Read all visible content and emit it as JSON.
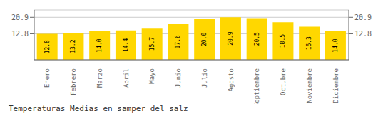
{
  "chart_data": {
    "type": "bar",
    "title": "Temperaturas Medias en samper del salz",
    "categories": [
      "Enero",
      "Febrero",
      "Marzo",
      "Abril",
      "Mayo",
      "Junio",
      "Julio",
      "Agosto",
      "Septiembre",
      "Octubre",
      "Noviembre",
      "Diciembre"
    ],
    "values": [
      12.8,
      13.2,
      14.0,
      14.4,
      15.7,
      17.6,
      20.0,
      20.9,
      20.5,
      18.5,
      16.3,
      14.0
    ],
    "value_labels": [
      "12.8",
      "13.2",
      "14.0",
      "14.4",
      "15.7",
      "17.6",
      "20.0",
      "20.9",
      "20.5",
      "18.5",
      "16.3",
      "14.0"
    ],
    "color": "#FFD700",
    "ylim": [
      0,
      24.5
    ],
    "yticks": [
      12.8,
      20.9
    ],
    "grid": true,
    "data_labels": true
  }
}
